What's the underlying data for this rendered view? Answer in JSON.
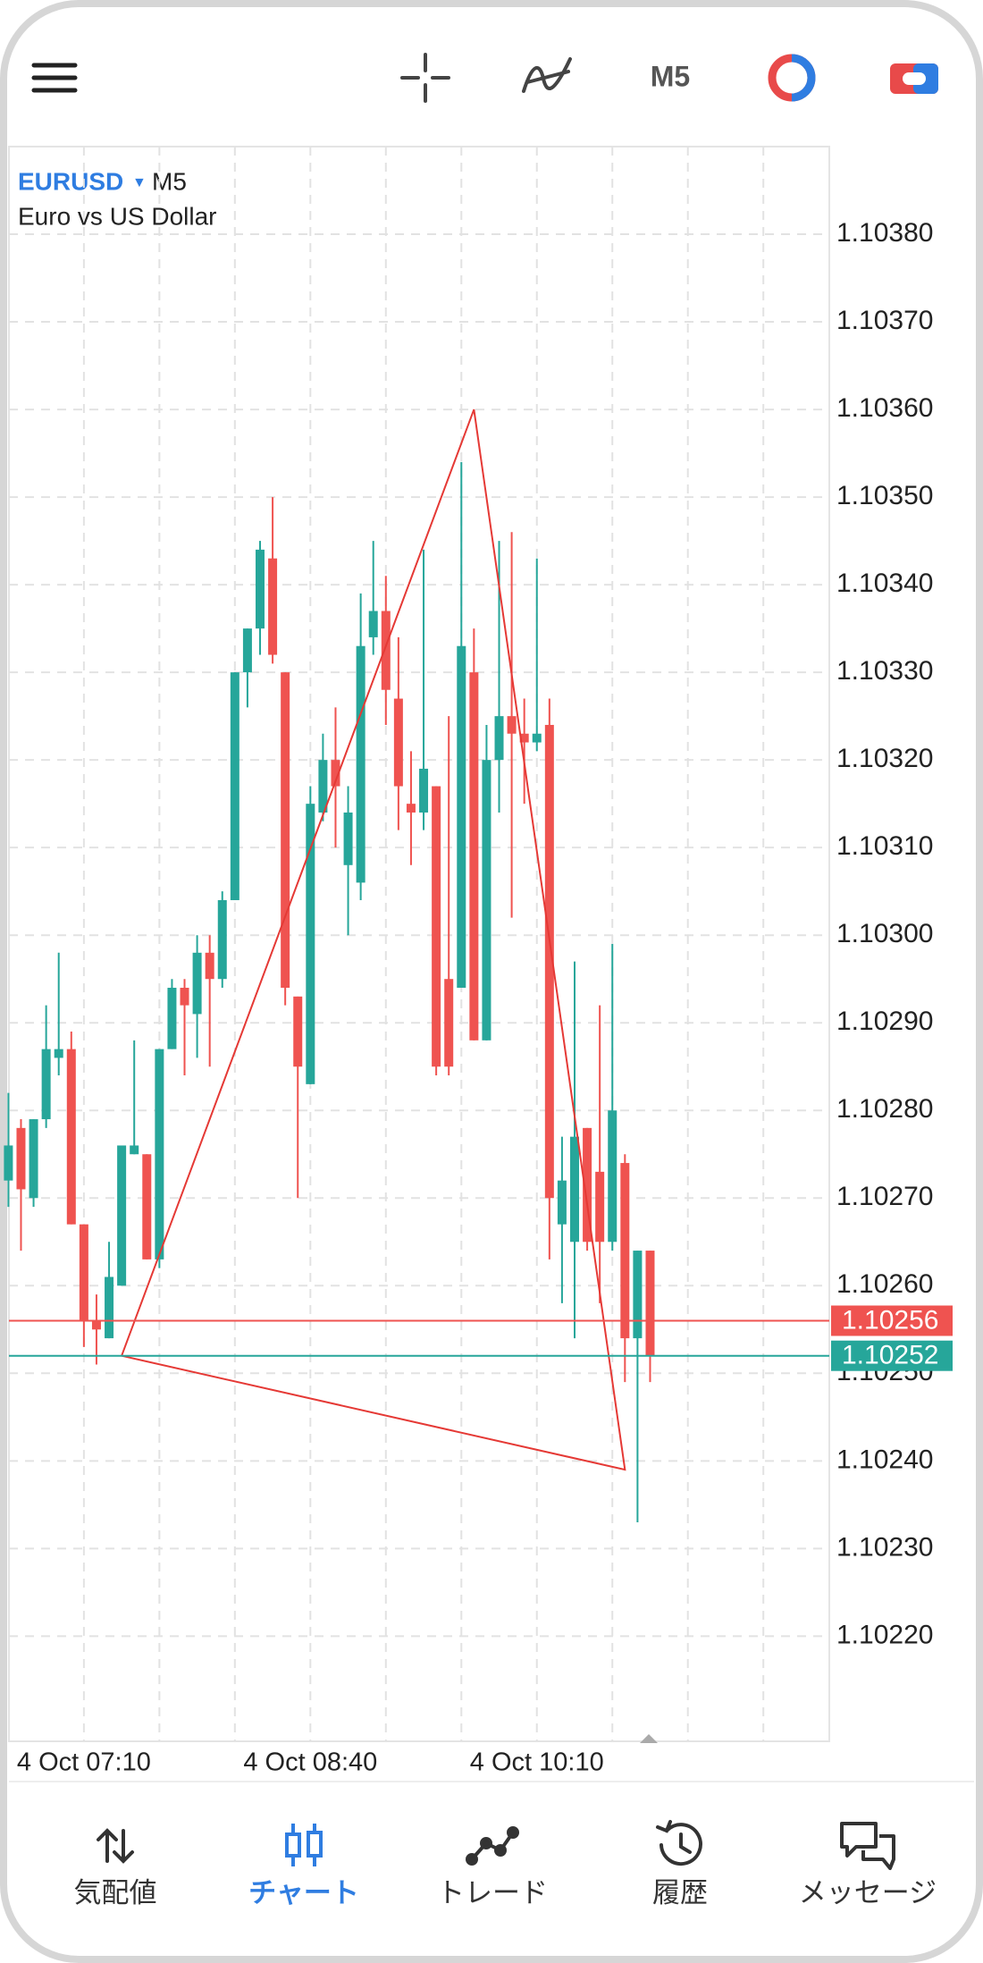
{
  "toolbar": {
    "timeframe": "M5"
  },
  "nav": [
    "気配値",
    "チャート",
    "トレード",
    "履歴",
    "メッセージ"
  ],
  "chart_data": {
    "type": "candlestick",
    "symbol": "EURUSD",
    "timeframe": "M5",
    "description": "Euro vs US Dollar",
    "categories": [
      null,
      null,
      null,
      null,
      null,
      null,
      "4 Oct 07:10",
      null,
      null,
      null,
      null,
      null,
      null,
      null,
      null,
      null,
      null,
      null,
      null,
      null,
      null,
      null,
      null,
      null,
      "4 Oct 08:40",
      null,
      null,
      null,
      null,
      null,
      null,
      null,
      null,
      null,
      null,
      null,
      null,
      null,
      null,
      null,
      null,
      null,
      "4 Oct 10:10",
      null,
      null,
      null,
      null,
      null,
      null,
      null,
      null,
      null
    ],
    "open": [
      1.10272,
      1.10278,
      1.1027,
      1.10279,
      1.10286,
      1.10287,
      1.10267,
      1.10256,
      1.10254,
      1.1026,
      1.10275,
      1.10275,
      1.10263,
      1.10287,
      1.10294,
      1.10291,
      1.10298,
      1.10295,
      1.10304,
      1.1033,
      1.10335,
      1.10343,
      1.1033,
      1.10293,
      1.10283,
      1.10314,
      1.1032,
      1.10308,
      1.10306,
      1.10334,
      1.10337,
      1.10327,
      1.10315,
      1.10314,
      1.10317,
      1.10295,
      1.10294,
      1.1033,
      1.10288,
      1.1032,
      1.10325,
      1.10323,
      1.10322,
      1.10324,
      1.10267,
      1.10265,
      1.10278,
      1.10273,
      1.10265,
      1.10274,
      1.10254,
      1.10264
    ],
    "high": [
      1.10282,
      1.10279,
      1.10279,
      1.10292,
      1.10298,
      1.10289,
      1.10267,
      1.10259,
      1.10265,
      1.10276,
      1.10288,
      1.10275,
      1.10287,
      1.10295,
      1.10295,
      1.103,
      1.103,
      1.10305,
      1.1033,
      1.10335,
      1.10345,
      1.1035,
      1.1033,
      1.10293,
      1.10317,
      1.10323,
      1.10326,
      1.10317,
      1.10339,
      1.10345,
      1.10341,
      1.10334,
      1.10321,
      1.10344,
      1.10317,
      1.10325,
      1.10354,
      1.10335,
      1.10324,
      1.10345,
      1.10346,
      1.10327,
      1.10343,
      1.10327,
      1.10277,
      1.10297,
      1.10278,
      1.10292,
      1.10299,
      1.10275,
      1.10264,
      1.10264
    ],
    "low": [
      1.10269,
      1.10264,
      1.10269,
      1.10278,
      1.10284,
      1.10267,
      1.10253,
      1.10251,
      1.10254,
      1.1026,
      1.10275,
      1.10263,
      1.10262,
      1.10287,
      1.10284,
      1.10286,
      1.10285,
      1.10294,
      1.10304,
      1.10326,
      1.10332,
      1.10331,
      1.10292,
      1.1027,
      1.10283,
      1.10313,
      1.1031,
      1.103,
      1.10304,
      1.10332,
      1.10324,
      1.10312,
      1.10308,
      1.10312,
      1.10284,
      1.10284,
      1.10294,
      1.10288,
      1.10288,
      1.10314,
      1.10302,
      1.10315,
      1.10321,
      1.10263,
      1.10258,
      1.10254,
      1.10264,
      1.10258,
      1.10264,
      1.10249,
      1.10233,
      1.10249
    ],
    "close": [
      1.10276,
      1.10271,
      1.10279,
      1.10287,
      1.10287,
      1.10267,
      1.10256,
      1.10255,
      1.10261,
      1.10276,
      1.10276,
      1.10263,
      1.10287,
      1.10294,
      1.10292,
      1.10298,
      1.10295,
      1.10304,
      1.1033,
      1.10335,
      1.10344,
      1.10332,
      1.10294,
      1.10285,
      1.10315,
      1.1032,
      1.10317,
      1.10314,
      1.10333,
      1.10337,
      1.10328,
      1.10317,
      1.10314,
      1.10319,
      1.10285,
      1.10285,
      1.10333,
      1.10288,
      1.1032,
      1.10325,
      1.10323,
      1.10322,
      1.10323,
      1.1027,
      1.10272,
      1.10277,
      1.10265,
      1.10265,
      1.1028,
      1.10254,
      1.10264,
      1.10252
    ],
    "up_color": "#26a69a",
    "down_color": "#ef5350",
    "ylim": [
      1.10208,
      1.1039
    ],
    "yticks": [
      {
        "value": 1.1038,
        "label": "1.10380"
      },
      {
        "value": 1.1037,
        "label": "1.10370"
      },
      {
        "value": 1.1036,
        "label": "1.10360"
      },
      {
        "value": 1.1035,
        "label": "1.10350"
      },
      {
        "value": 1.1034,
        "label": "1.10340"
      },
      {
        "value": 1.1033,
        "label": "1.10330"
      },
      {
        "value": 1.1032,
        "label": "1.10320"
      },
      {
        "value": 1.1031,
        "label": "1.10310"
      },
      {
        "value": 1.103,
        "label": "1.10300"
      },
      {
        "value": 1.1029,
        "label": "1.10290"
      },
      {
        "value": 1.1028,
        "label": "1.10280"
      },
      {
        "value": 1.1027,
        "label": "1.10270"
      },
      {
        "value": 1.1026,
        "label": "1.10260"
      },
      {
        "value": 1.1025,
        "label": "1.10250"
      },
      {
        "value": 1.1024,
        "label": "1.10240"
      },
      {
        "value": 1.1023,
        "label": "1.10230"
      },
      {
        "value": 1.1022,
        "label": "1.10220"
      }
    ],
    "grid": true,
    "ask": 1.10256,
    "ask_color": "#ef5350",
    "bid": 1.10252,
    "bid_color": "#26a69a",
    "triangle": {
      "x": [
        9,
        37,
        49
      ],
      "y": [
        1.10252,
        1.1036,
        1.10239
      ],
      "color": "#e53935"
    }
  }
}
